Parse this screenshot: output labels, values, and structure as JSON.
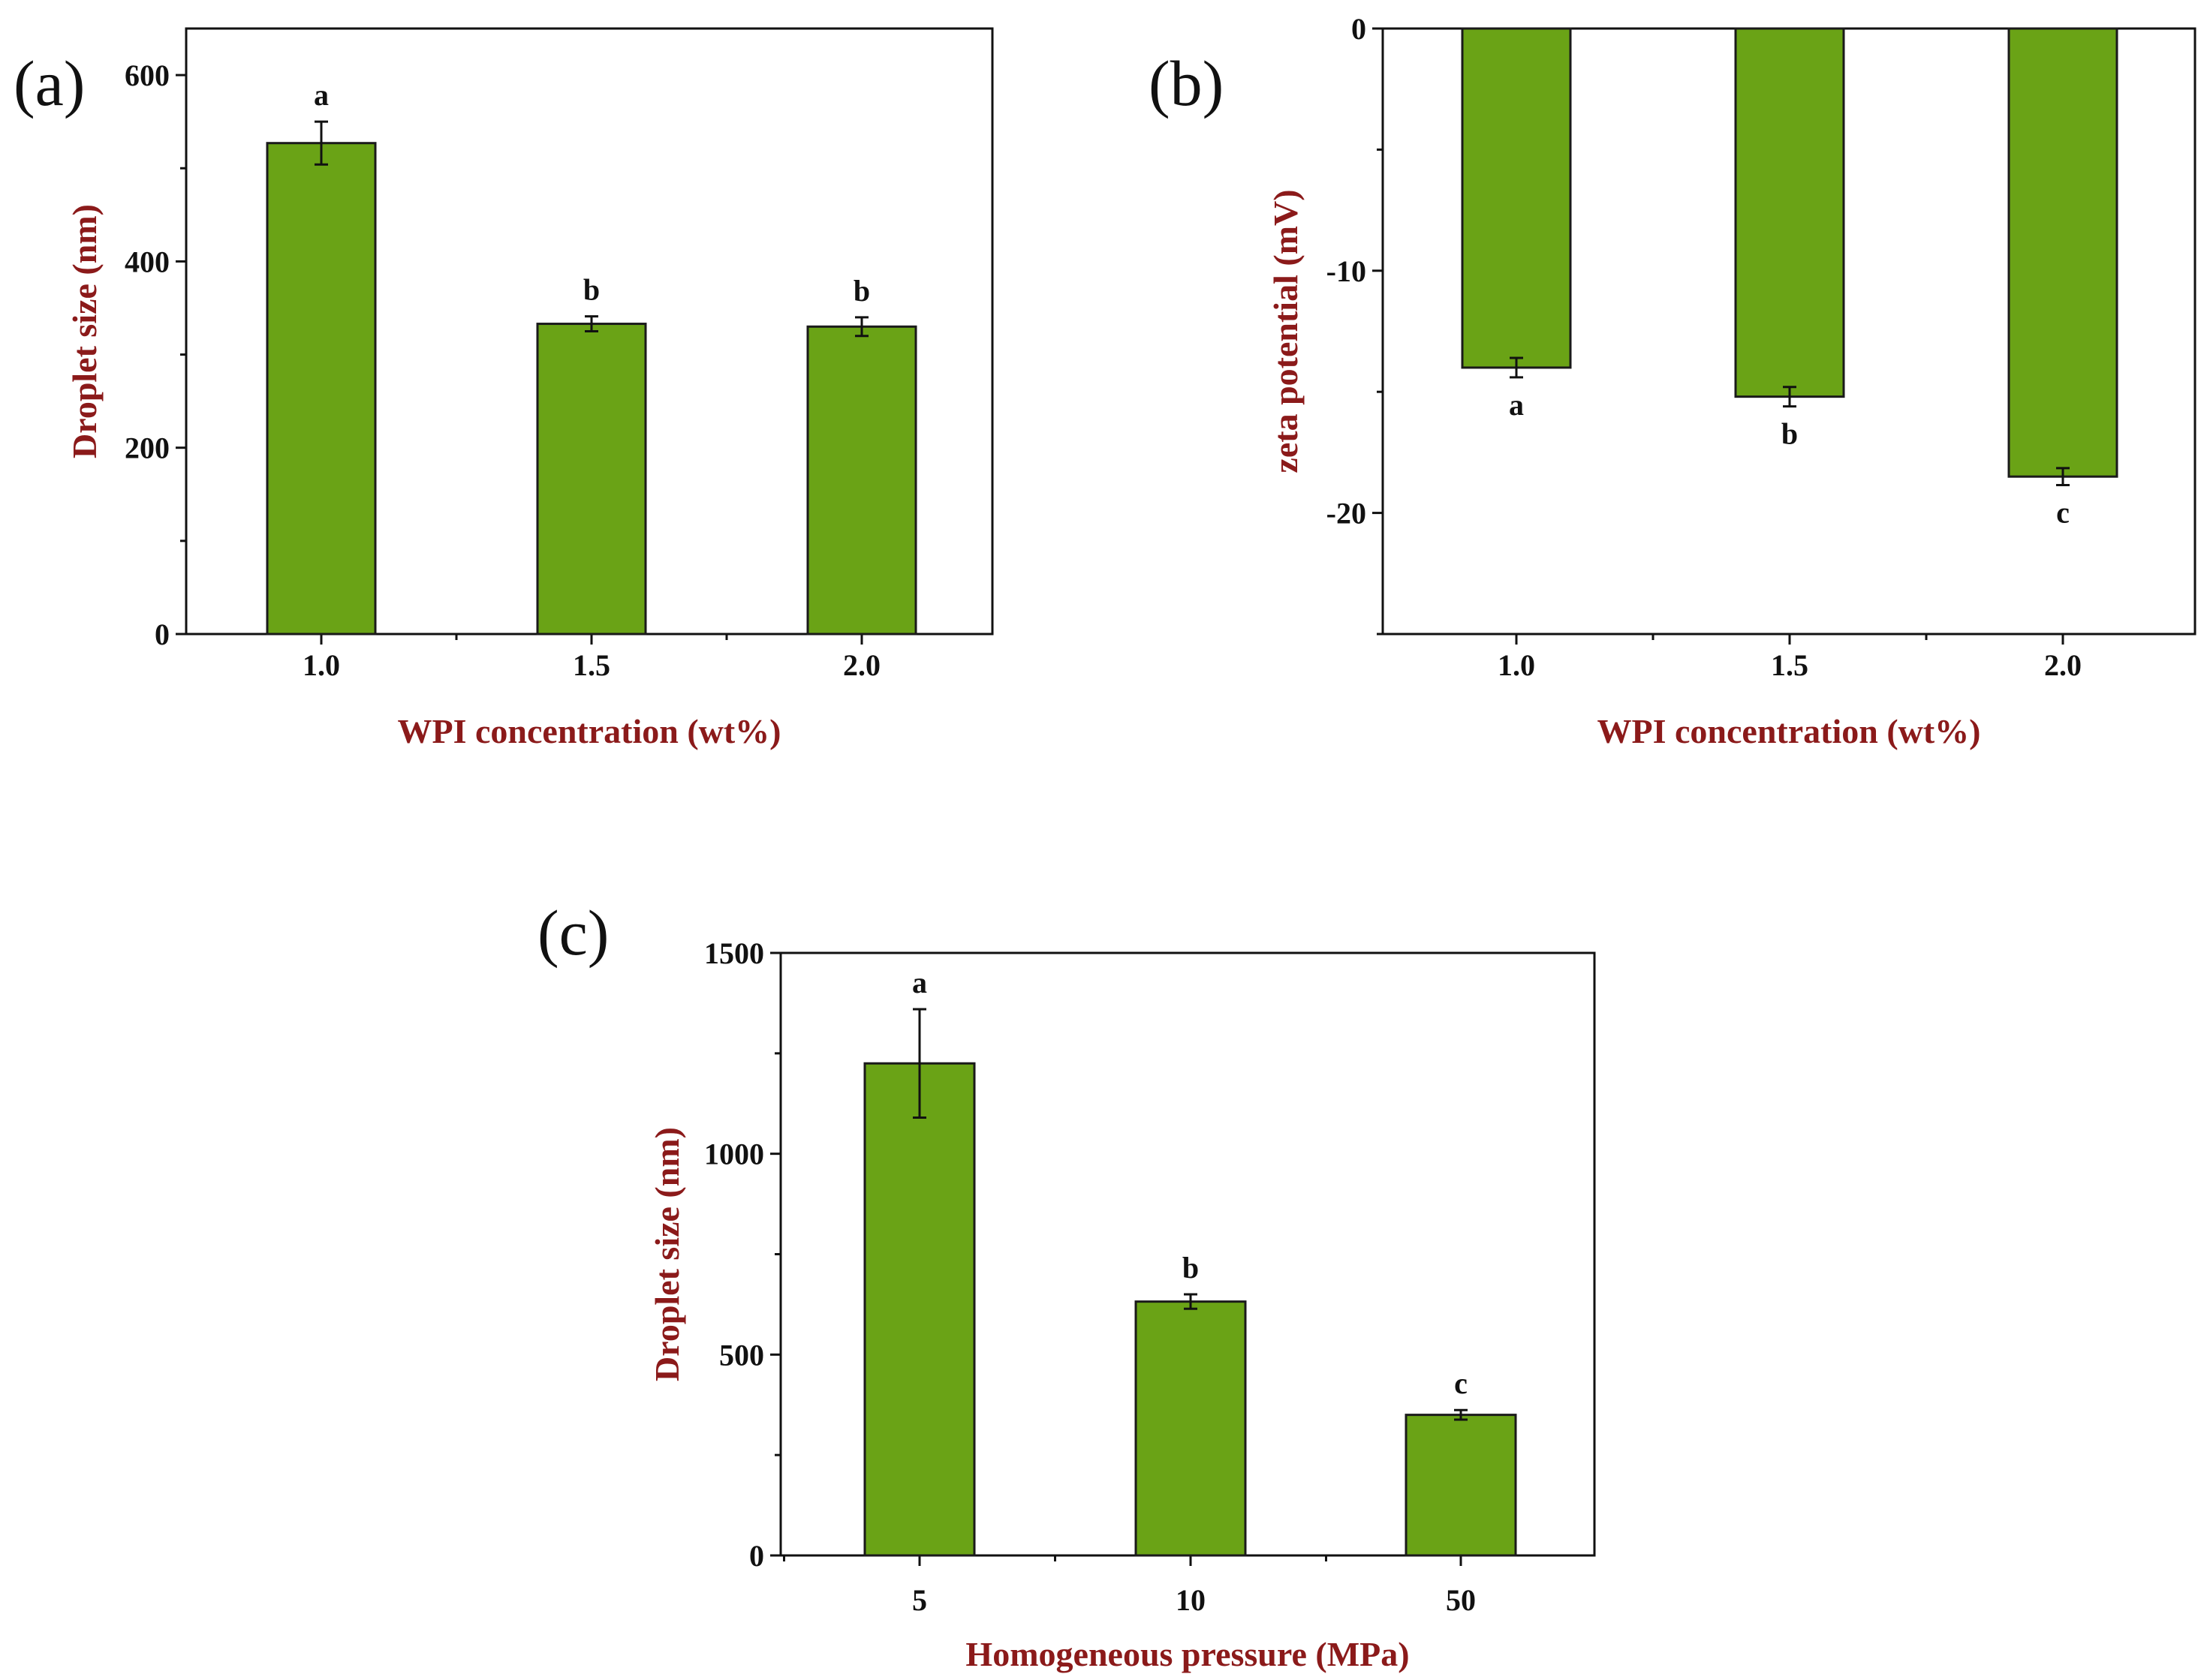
{
  "colors": {
    "bar_fill": "#6aa316",
    "bar_stroke": "#1a1a1a",
    "axis_title": "#8b1a1a",
    "axis": "#111111"
  },
  "chart_data": [
    {
      "id": "a",
      "panel_label": "(a)",
      "type": "bar",
      "categories": [
        "1.0",
        "1.5",
        "2.0"
      ],
      "values": [
        527,
        333,
        330
      ],
      "errors": [
        23,
        8,
        10
      ],
      "significance": [
        "a",
        "b",
        "b"
      ],
      "xlabel": "WPI concentration (wt%)",
      "ylabel": "Droplet size (nm)",
      "ylim": [
        0,
        650
      ],
      "yticks": [
        0,
        200,
        400,
        600
      ],
      "ytick_labels": [
        "0",
        "200",
        "400",
        "600"
      ]
    },
    {
      "id": "b",
      "panel_label": "(b)",
      "type": "bar",
      "categories": [
        "1.0",
        "1.5",
        "2.0"
      ],
      "values": [
        -14.0,
        -15.2,
        -18.5
      ],
      "errors": [
        0.4,
        0.4,
        0.35
      ],
      "significance": [
        "a",
        "b",
        "c"
      ],
      "xlabel": "WPI concentration (wt%)",
      "ylabel": "zeta potential (mV)",
      "ylim": [
        -25,
        0
      ],
      "yticks": [
        0,
        -10,
        -20
      ],
      "ytick_labels": [
        "0",
        "-10",
        "-20"
      ]
    },
    {
      "id": "c",
      "panel_label": "(c)",
      "type": "bar",
      "categories": [
        "5",
        "10",
        "50"
      ],
      "values": [
        1225,
        632,
        350
      ],
      "errors": [
        135,
        18,
        12
      ],
      "significance": [
        "a",
        "b",
        "c"
      ],
      "xlabel": "Homogeneous pressure (MPa)",
      "ylabel": "Droplet size (nm)",
      "ylim": [
        0,
        1500
      ],
      "yticks": [
        0,
        500,
        1000,
        1500
      ],
      "ytick_labels": [
        "0",
        "500",
        "1000",
        "1500"
      ]
    }
  ]
}
